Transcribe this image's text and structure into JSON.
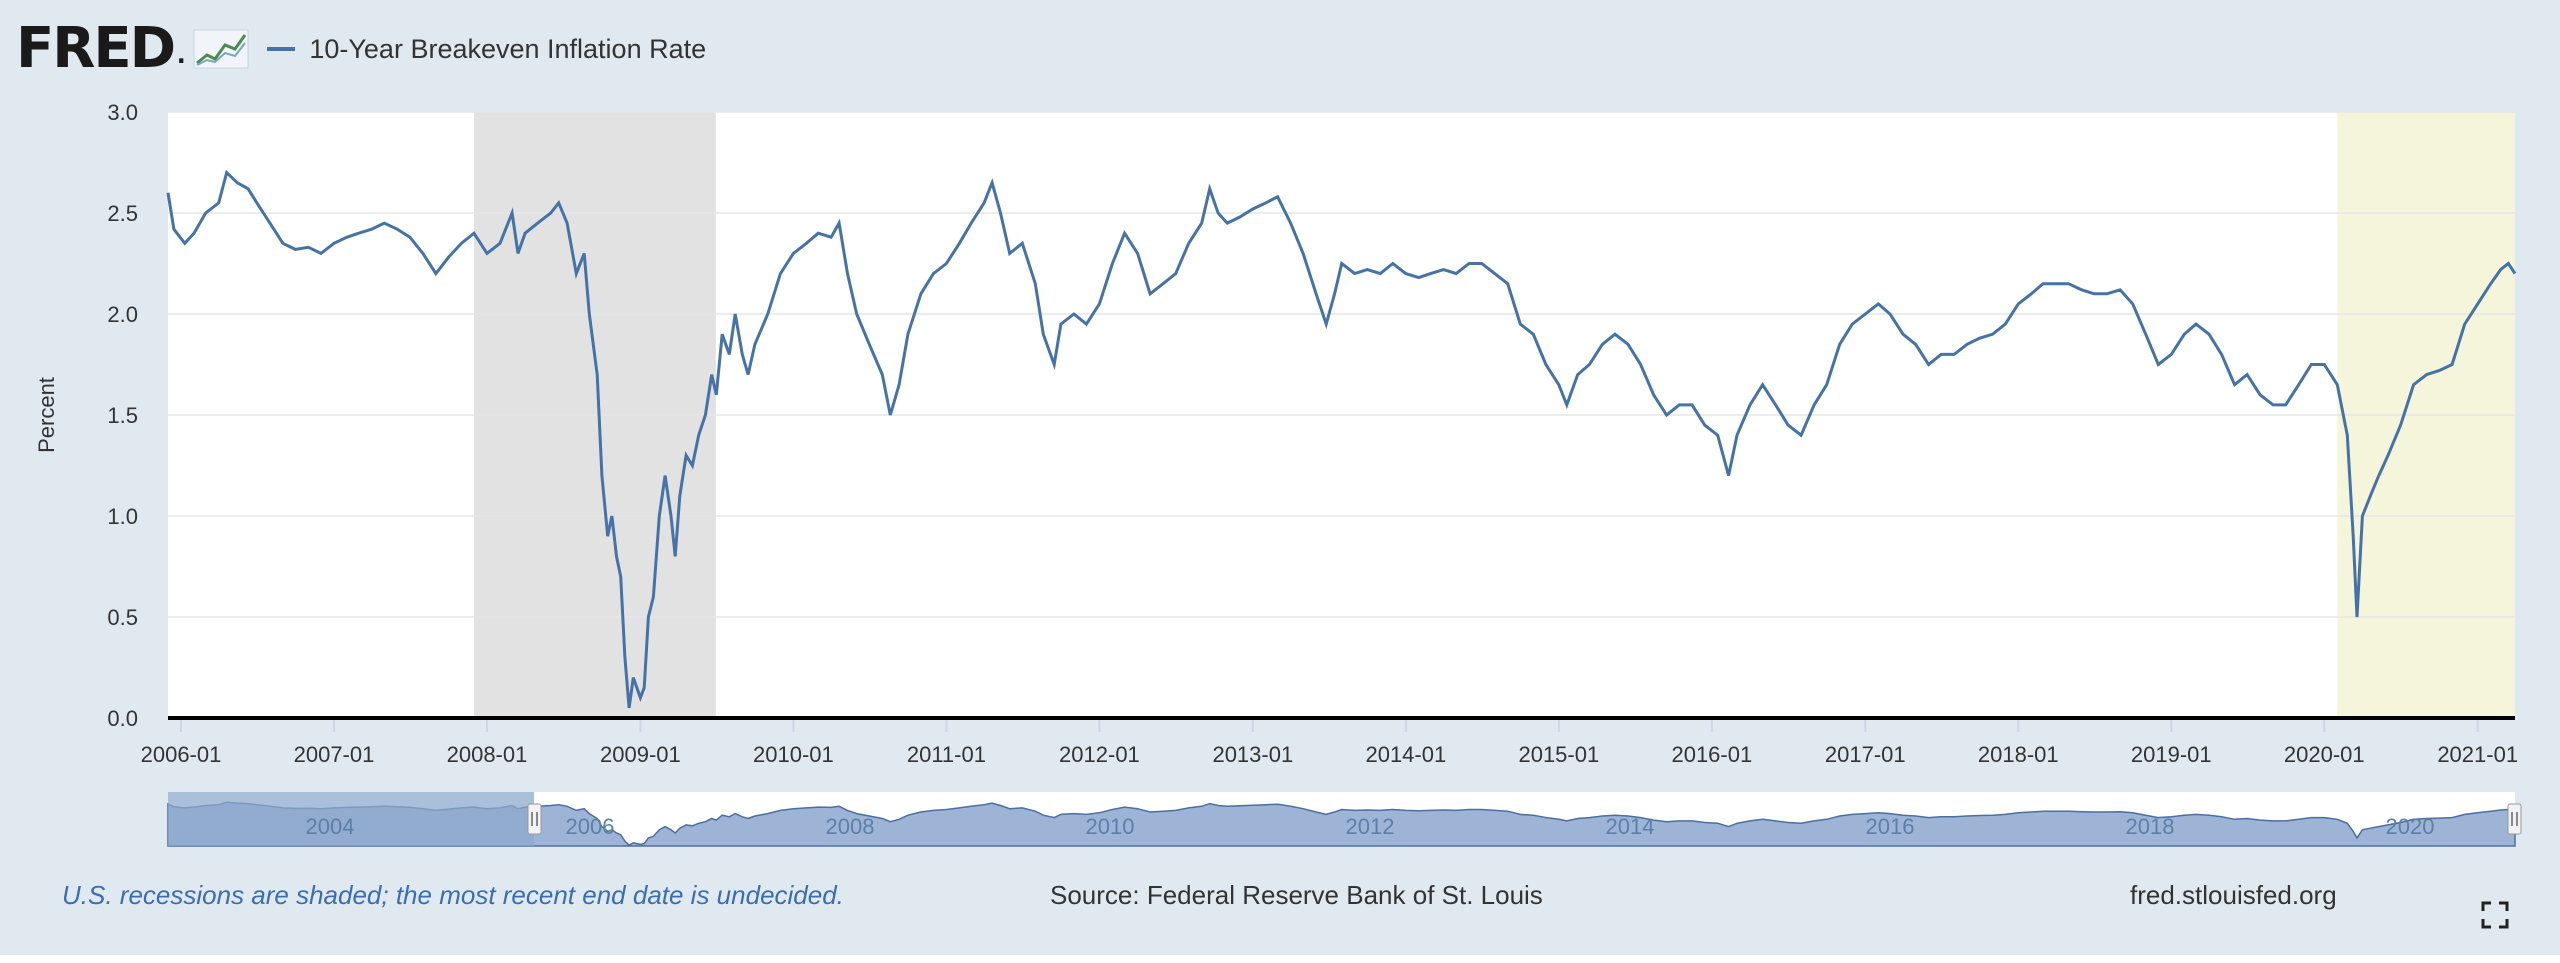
{
  "header": {
    "logo_text": "FRED",
    "logo_dot": ".",
    "series_label": "10-Year Breakeven Inflation Rate"
  },
  "footer": {
    "recession_note": "U.S. recessions are shaded; the most recent end date is undecided.",
    "source": "Source: Federal Reserve Bank of St. Louis",
    "url": "fred.stlouisfed.org"
  },
  "colors": {
    "line": "#4572a7",
    "recession_shade": "#e2e2e2",
    "undecided_shade": "#f5f5dc",
    "navigator_fill": "#9db4d6"
  },
  "chart_data": {
    "type": "line",
    "title": "",
    "xlabel": "",
    "ylabel": "Percent",
    "ylim": [
      0.0,
      3.0
    ],
    "yticks": [
      "0.0",
      "0.5",
      "1.0",
      "1.5",
      "2.0",
      "2.5",
      "3.0"
    ],
    "xlim": [
      "2005-12-01",
      "2021-03-31"
    ],
    "xticks": [
      "2006-01",
      "2007-01",
      "2008-01",
      "2009-01",
      "2010-01",
      "2011-01",
      "2012-01",
      "2013-01",
      "2014-01",
      "2015-01",
      "2016-01",
      "2017-01",
      "2018-01",
      "2019-01",
      "2020-01",
      "2021-01"
    ],
    "grid": "horizontal",
    "legend": "top-left",
    "recessions": [
      {
        "start": "2007-12-01",
        "end": "2009-06-30",
        "style": "gray"
      },
      {
        "start": "2020-02-01",
        "end": "2021-03-31",
        "style": "undecided"
      }
    ],
    "series": [
      {
        "name": "10-Year Breakeven Inflation Rate",
        "points": [
          [
            "2005-12-01",
            2.6
          ],
          [
            "2005-12-15",
            2.42
          ],
          [
            "2006-01-10",
            2.35
          ],
          [
            "2006-02-01",
            2.4
          ],
          [
            "2006-03-01",
            2.5
          ],
          [
            "2006-04-01",
            2.55
          ],
          [
            "2006-04-20",
            2.7
          ],
          [
            "2006-05-15",
            2.65
          ],
          [
            "2006-06-10",
            2.62
          ],
          [
            "2006-07-01",
            2.55
          ],
          [
            "2006-08-01",
            2.45
          ],
          [
            "2006-09-01",
            2.35
          ],
          [
            "2006-10-01",
            2.32
          ],
          [
            "2006-11-01",
            2.33
          ],
          [
            "2006-12-01",
            2.3
          ],
          [
            "2007-01-01",
            2.35
          ],
          [
            "2007-02-01",
            2.38
          ],
          [
            "2007-03-01",
            2.4
          ],
          [
            "2007-04-01",
            2.42
          ],
          [
            "2007-05-01",
            2.45
          ],
          [
            "2007-06-01",
            2.42
          ],
          [
            "2007-07-01",
            2.38
          ],
          [
            "2007-08-01",
            2.3
          ],
          [
            "2007-09-01",
            2.2
          ],
          [
            "2007-10-01",
            2.28
          ],
          [
            "2007-11-01",
            2.35
          ],
          [
            "2007-12-01",
            2.4
          ],
          [
            "2008-01-01",
            2.3
          ],
          [
            "2008-02-01",
            2.35
          ],
          [
            "2008-03-01",
            2.5
          ],
          [
            "2008-03-15",
            2.3
          ],
          [
            "2008-04-01",
            2.4
          ],
          [
            "2008-05-01",
            2.45
          ],
          [
            "2008-06-01",
            2.5
          ],
          [
            "2008-06-20",
            2.55
          ],
          [
            "2008-07-10",
            2.45
          ],
          [
            "2008-08-01",
            2.2
          ],
          [
            "2008-08-20",
            2.3
          ],
          [
            "2008-09-01",
            2.0
          ],
          [
            "2008-09-20",
            1.7
          ],
          [
            "2008-10-01",
            1.2
          ],
          [
            "2008-10-15",
            0.9
          ],
          [
            "2008-10-25",
            1.0
          ],
          [
            "2008-11-05",
            0.8
          ],
          [
            "2008-11-15",
            0.7
          ],
          [
            "2008-11-25",
            0.3
          ],
          [
            "2008-12-05",
            0.05
          ],
          [
            "2008-12-15",
            0.2
          ],
          [
            "2009-01-01",
            0.1
          ],
          [
            "2009-01-10",
            0.15
          ],
          [
            "2009-01-20",
            0.5
          ],
          [
            "2009-02-01",
            0.6
          ],
          [
            "2009-02-15",
            1.0
          ],
          [
            "2009-03-01",
            1.2
          ],
          [
            "2009-03-15",
            1.0
          ],
          [
            "2009-03-25",
            0.8
          ],
          [
            "2009-04-05",
            1.1
          ],
          [
            "2009-04-20",
            1.3
          ],
          [
            "2009-05-05",
            1.25
          ],
          [
            "2009-05-20",
            1.4
          ],
          [
            "2009-06-05",
            1.5
          ],
          [
            "2009-06-20",
            1.7
          ],
          [
            "2009-07-01",
            1.6
          ],
          [
            "2009-07-15",
            1.9
          ],
          [
            "2009-08-01",
            1.8
          ],
          [
            "2009-08-15",
            2.0
          ],
          [
            "2009-09-01",
            1.8
          ],
          [
            "2009-09-15",
            1.7
          ],
          [
            "2009-10-01",
            1.85
          ],
          [
            "2009-11-01",
            2.0
          ],
          [
            "2009-12-01",
            2.2
          ],
          [
            "2010-01-01",
            2.3
          ],
          [
            "2010-02-01",
            2.35
          ],
          [
            "2010-03-01",
            2.4
          ],
          [
            "2010-04-01",
            2.38
          ],
          [
            "2010-04-20",
            2.45
          ],
          [
            "2010-05-10",
            2.2
          ],
          [
            "2010-06-01",
            2.0
          ],
          [
            "2010-07-01",
            1.85
          ],
          [
            "2010-08-01",
            1.7
          ],
          [
            "2010-08-20",
            1.5
          ],
          [
            "2010-09-10",
            1.65
          ],
          [
            "2010-10-01",
            1.9
          ],
          [
            "2010-11-01",
            2.1
          ],
          [
            "2010-12-01",
            2.2
          ],
          [
            "2011-01-01",
            2.25
          ],
          [
            "2011-02-01",
            2.35
          ],
          [
            "2011-03-01",
            2.45
          ],
          [
            "2011-04-01",
            2.55
          ],
          [
            "2011-04-20",
            2.65
          ],
          [
            "2011-05-10",
            2.5
          ],
          [
            "2011-06-01",
            2.3
          ],
          [
            "2011-07-01",
            2.35
          ],
          [
            "2011-08-01",
            2.15
          ],
          [
            "2011-08-20",
            1.9
          ],
          [
            "2011-09-15",
            1.75
          ],
          [
            "2011-10-01",
            1.95
          ],
          [
            "2011-11-01",
            2.0
          ],
          [
            "2011-12-01",
            1.95
          ],
          [
            "2012-01-01",
            2.05
          ],
          [
            "2012-02-01",
            2.25
          ],
          [
            "2012-03-01",
            2.4
          ],
          [
            "2012-04-01",
            2.3
          ],
          [
            "2012-05-01",
            2.1
          ],
          [
            "2012-06-01",
            2.15
          ],
          [
            "2012-07-01",
            2.2
          ],
          [
            "2012-08-01",
            2.35
          ],
          [
            "2012-09-01",
            2.45
          ],
          [
            "2012-09-20",
            2.62
          ],
          [
            "2012-10-10",
            2.5
          ],
          [
            "2012-11-01",
            2.45
          ],
          [
            "2012-12-01",
            2.48
          ],
          [
            "2013-01-01",
            2.52
          ],
          [
            "2013-02-01",
            2.55
          ],
          [
            "2013-03-01",
            2.58
          ],
          [
            "2013-04-01",
            2.45
          ],
          [
            "2013-05-01",
            2.3
          ],
          [
            "2013-06-01",
            2.1
          ],
          [
            "2013-06-25",
            1.95
          ],
          [
            "2013-07-15",
            2.1
          ],
          [
            "2013-08-01",
            2.25
          ],
          [
            "2013-09-01",
            2.2
          ],
          [
            "2013-10-01",
            2.22
          ],
          [
            "2013-11-01",
            2.2
          ],
          [
            "2013-12-01",
            2.25
          ],
          [
            "2014-01-01",
            2.2
          ],
          [
            "2014-02-01",
            2.18
          ],
          [
            "2014-03-01",
            2.2
          ],
          [
            "2014-04-01",
            2.22
          ],
          [
            "2014-05-01",
            2.2
          ],
          [
            "2014-06-01",
            2.25
          ],
          [
            "2014-07-01",
            2.25
          ],
          [
            "2014-08-01",
            2.2
          ],
          [
            "2014-09-01",
            2.15
          ],
          [
            "2014-10-01",
            1.95
          ],
          [
            "2014-11-01",
            1.9
          ],
          [
            "2014-12-01",
            1.75
          ],
          [
            "2015-01-01",
            1.65
          ],
          [
            "2015-01-20",
            1.55
          ],
          [
            "2015-02-15",
            1.7
          ],
          [
            "2015-03-15",
            1.75
          ],
          [
            "2015-04-15",
            1.85
          ],
          [
            "2015-05-15",
            1.9
          ],
          [
            "2015-06-15",
            1.85
          ],
          [
            "2015-07-15",
            1.75
          ],
          [
            "2015-08-15",
            1.6
          ],
          [
            "2015-09-15",
            1.5
          ],
          [
            "2015-10-15",
            1.55
          ],
          [
            "2015-11-15",
            1.55
          ],
          [
            "2015-12-15",
            1.45
          ],
          [
            "2016-01-15",
            1.4
          ],
          [
            "2016-02-10",
            1.2
          ],
          [
            "2016-03-01",
            1.4
          ],
          [
            "2016-04-01",
            1.55
          ],
          [
            "2016-05-01",
            1.65
          ],
          [
            "2016-06-01",
            1.55
          ],
          [
            "2016-07-01",
            1.45
          ],
          [
            "2016-08-01",
            1.4
          ],
          [
            "2016-09-01",
            1.55
          ],
          [
            "2016-10-01",
            1.65
          ],
          [
            "2016-11-01",
            1.85
          ],
          [
            "2016-12-01",
            1.95
          ],
          [
            "2017-01-01",
            2.0
          ],
          [
            "2017-02-01",
            2.05
          ],
          [
            "2017-03-01",
            2.0
          ],
          [
            "2017-04-01",
            1.9
          ],
          [
            "2017-05-01",
            1.85
          ],
          [
            "2017-06-01",
            1.75
          ],
          [
            "2017-07-01",
            1.8
          ],
          [
            "2017-08-01",
            1.8
          ],
          [
            "2017-09-01",
            1.85
          ],
          [
            "2017-10-01",
            1.88
          ],
          [
            "2017-11-01",
            1.9
          ],
          [
            "2017-12-01",
            1.95
          ],
          [
            "2018-01-01",
            2.05
          ],
          [
            "2018-02-01",
            2.1
          ],
          [
            "2018-03-01",
            2.15
          ],
          [
            "2018-04-01",
            2.15
          ],
          [
            "2018-05-01",
            2.15
          ],
          [
            "2018-06-01",
            2.12
          ],
          [
            "2018-07-01",
            2.1
          ],
          [
            "2018-08-01",
            2.1
          ],
          [
            "2018-09-01",
            2.12
          ],
          [
            "2018-10-01",
            2.05
          ],
          [
            "2018-11-01",
            1.9
          ],
          [
            "2018-12-01",
            1.75
          ],
          [
            "2019-01-01",
            1.8
          ],
          [
            "2019-02-01",
            1.9
          ],
          [
            "2019-03-01",
            1.95
          ],
          [
            "2019-04-01",
            1.9
          ],
          [
            "2019-05-01",
            1.8
          ],
          [
            "2019-06-01",
            1.65
          ],
          [
            "2019-07-01",
            1.7
          ],
          [
            "2019-08-01",
            1.6
          ],
          [
            "2019-09-01",
            1.55
          ],
          [
            "2019-10-01",
            1.55
          ],
          [
            "2019-11-01",
            1.65
          ],
          [
            "2019-12-01",
            1.75
          ],
          [
            "2020-01-01",
            1.75
          ],
          [
            "2020-02-01",
            1.65
          ],
          [
            "2020-02-25",
            1.4
          ],
          [
            "2020-03-10",
            0.9
          ],
          [
            "2020-03-19",
            0.5
          ],
          [
            "2020-04-01",
            1.0
          ],
          [
            "2020-04-20",
            1.1
          ],
          [
            "2020-05-10",
            1.2
          ],
          [
            "2020-06-01",
            1.3
          ],
          [
            "2020-07-01",
            1.45
          ],
          [
            "2020-08-01",
            1.65
          ],
          [
            "2020-09-01",
            1.7
          ],
          [
            "2020-10-01",
            1.72
          ],
          [
            "2020-11-01",
            1.75
          ],
          [
            "2020-12-01",
            1.95
          ],
          [
            "2021-01-01",
            2.05
          ],
          [
            "2021-02-01",
            2.15
          ],
          [
            "2021-02-25",
            2.22
          ],
          [
            "2021-03-15",
            2.25
          ],
          [
            "2021-03-31",
            2.2
          ]
        ]
      }
    ],
    "navigator": {
      "xticks": [
        "2004",
        "2006",
        "2008",
        "2010",
        "2012",
        "2014",
        "2016",
        "2018",
        "2020"
      ]
    }
  }
}
